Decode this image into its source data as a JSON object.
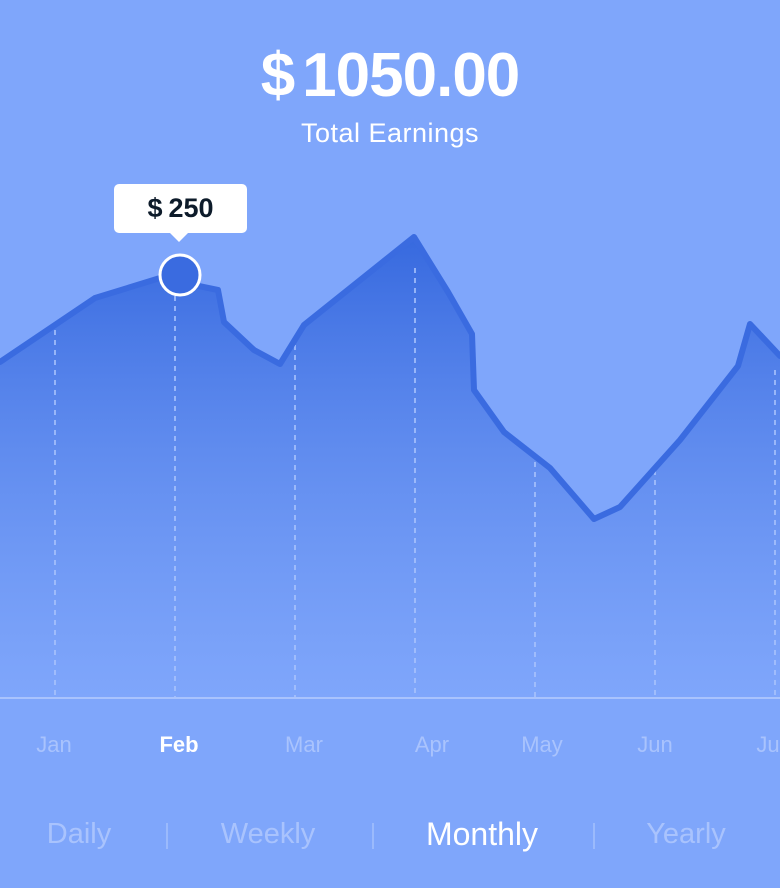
{
  "header": {
    "currency": "$",
    "total_amount": "1050.00",
    "subtitle": "Total Earnings"
  },
  "tooltip": {
    "currency": "$",
    "value": "250"
  },
  "months": [
    "Jan",
    "Feb",
    "Mar",
    "Apr",
    "May",
    "Jun",
    "Ju"
  ],
  "selected_month": "Feb",
  "periods": {
    "daily": "Daily",
    "weekly": "Weekly",
    "monthly": "Monthly",
    "yearly": "Yearly"
  },
  "selected_period": "Monthly",
  "colors": {
    "background": "#7fa6fb",
    "line": "#3a6be0",
    "marker": "#3a6be0",
    "text_active": "#ffffff",
    "text_inactive": "#a9c3fd"
  },
  "chart_data": {
    "type": "area",
    "x": [
      "Jan",
      "Feb",
      "Mar",
      "Apr",
      "May",
      "Jun",
      "Ju"
    ],
    "highlighted_point": {
      "x": "Feb",
      "label": "$ 250"
    }
  }
}
